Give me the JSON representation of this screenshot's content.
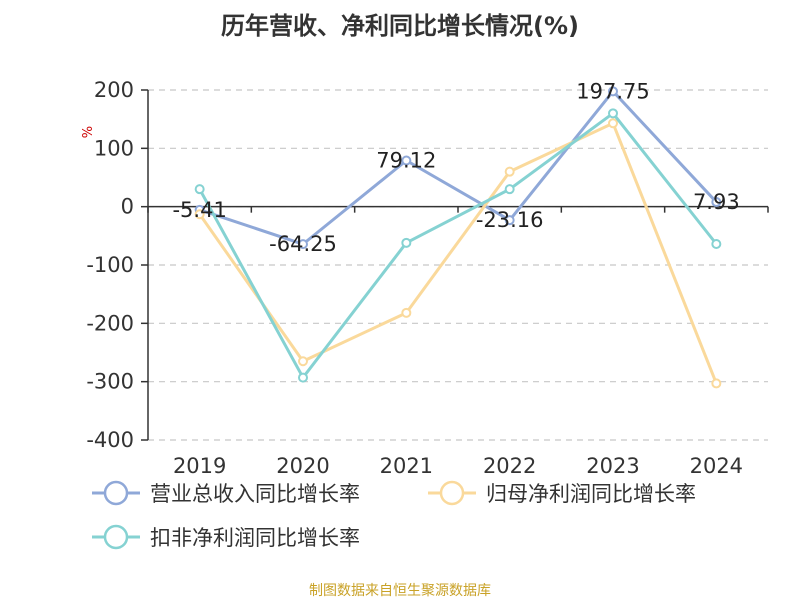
{
  "chart_data": {
    "type": "line",
    "title": "历年营收、净利同比增长情况(%)",
    "ylabel": "%",
    "categories": [
      "2019",
      "2020",
      "2021",
      "2022",
      "2023",
      "2024"
    ],
    "ylim": [
      -400,
      200
    ],
    "yticks": [
      200,
      100,
      0,
      -100,
      -200,
      -300,
      -400
    ],
    "grid": true,
    "legend_position": "bottom",
    "series": [
      {
        "name": "营业总收入同比增长率",
        "color": "#8fa8d8",
        "values": [
          -5.41,
          -64.25,
          79.12,
          -23.16,
          197.75,
          7.93
        ],
        "labels": [
          "-5.41",
          "-64.25",
          "79.12",
          "-23.16",
          "197.75",
          "7.93"
        ]
      },
      {
        "name": "归母净利润同比增长率",
        "color": "#fad99b",
        "values": [
          -13,
          -265,
          -182,
          60,
          143,
          -303
        ]
      },
      {
        "name": "扣非净利润同比增长率",
        "color": "#85d2d2",
        "values": [
          30,
          -293,
          -62,
          30,
          160,
          -64
        ]
      }
    ],
    "source": "制图数据来自恒生聚源数据库"
  }
}
